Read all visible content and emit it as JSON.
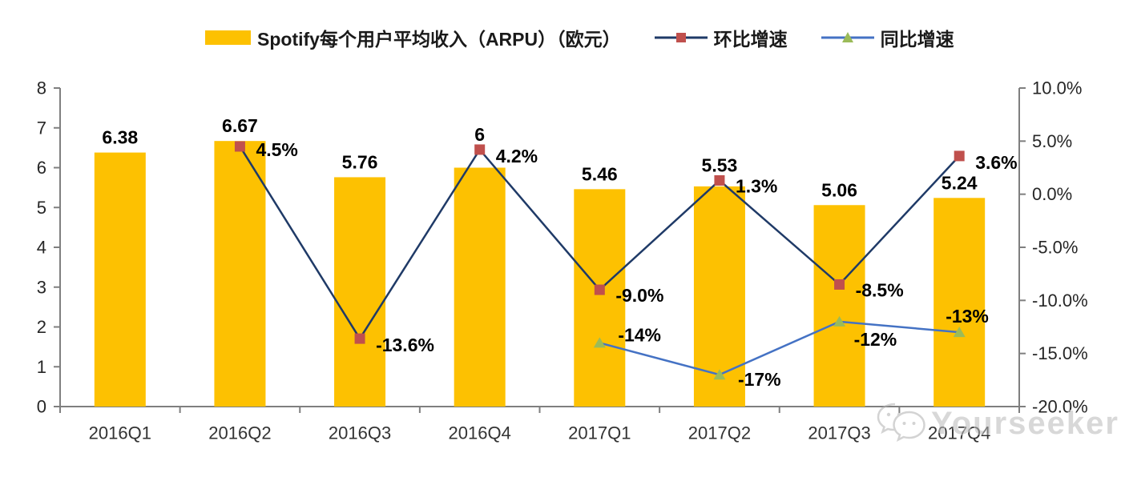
{
  "chart_data": {
    "type": "bar",
    "subtype": "combo-bar-line-dual-axis",
    "title": "",
    "grid": false,
    "legend_position": "top",
    "categories": [
      "2016Q1",
      "2016Q2",
      "2016Q3",
      "2016Q4",
      "2017Q1",
      "2017Q2",
      "2017Q3",
      "2017Q4"
    ],
    "bar_series": {
      "name": "Spotify每个用户平均收入（ARPU）（欧元）",
      "axis": "left",
      "color": "#FDC101",
      "values": [
        6.38,
        6.67,
        5.76,
        6,
        5.46,
        5.53,
        5.06,
        5.24
      ],
      "labels": [
        "6.38",
        "6.67",
        "5.76",
        "6",
        "5.46",
        "5.53",
        "5.06",
        "5.24"
      ]
    },
    "line_series": [
      {
        "name": "环比增速",
        "axis": "right",
        "color": "#1F3A67",
        "marker": "square",
        "marker_color": "#C0504D",
        "values": [
          null,
          4.5,
          -13.6,
          4.2,
          -9.0,
          1.3,
          -8.5,
          3.6
        ],
        "labels": [
          "",
          "4.5%",
          "-13.6%",
          "4.2%",
          "-9.0%",
          "1.3%",
          "-8.5%",
          "3.6%"
        ],
        "label_dx": [
          0,
          20,
          20,
          20,
          20,
          20,
          20,
          20
        ],
        "label_dy": [
          0,
          4,
          8,
          8,
          7,
          7,
          7,
          8
        ]
      },
      {
        "name": "同比增速",
        "axis": "right",
        "color": "#4472C4",
        "marker": "triangle",
        "marker_color": "#9BBB59",
        "values": [
          null,
          null,
          null,
          null,
          -14,
          -17,
          -12,
          -13
        ],
        "labels": [
          "",
          "",
          "",
          "",
          "-14%",
          "-17%",
          "-12%",
          "-13%"
        ],
        "label_dx": [
          0,
          0,
          0,
          0,
          23,
          23,
          18,
          -17
        ],
        "label_dy": [
          0,
          0,
          0,
          0,
          -10,
          6,
          22,
          -20
        ]
      }
    ],
    "left_axis": {
      "min": 0,
      "max": 8,
      "step": 1,
      "tick_labels": [
        "0",
        "1",
        "2",
        "3",
        "4",
        "5",
        "6",
        "7",
        "8"
      ]
    },
    "right_axis": {
      "min": -20,
      "max": 10,
      "step": 5,
      "tick_labels": [
        "10.0%",
        "5.0%",
        "0.0%",
        "-5.0%",
        "-10.0%",
        "-15.0%",
        "-20.0%"
      ]
    }
  },
  "watermark": {
    "text": "Yourseeker",
    "icon": "wechat-icon"
  },
  "colors": {
    "bar": "#FDC101",
    "qoq_line": "#1F3A67",
    "qoq_marker": "#C0504D",
    "yoy_line": "#4472C4",
    "yoy_marker": "#9BBB59",
    "axis": "#7F7F7F",
    "tick_text": "#262626",
    "data_label": "#000000"
  }
}
